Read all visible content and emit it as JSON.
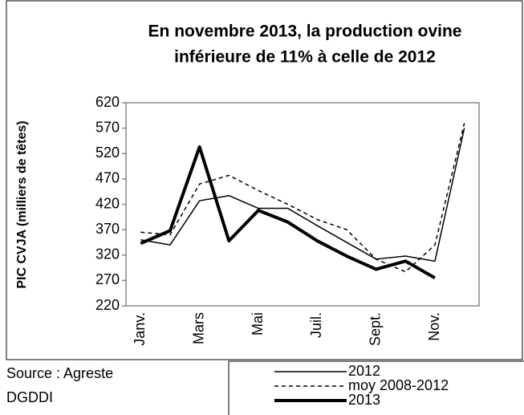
{
  "chart_data": {
    "type": "line",
    "title": [
      "En novembre 2013,  la production ovine",
      "inférieure de 11% à celle de 2012"
    ],
    "y_label": "PIC CVJA (milliers de têtes)",
    "source": [
      "Source : Agreste",
      "DGDDI"
    ],
    "categories": [
      "Janv.",
      null,
      "Mars",
      null,
      "Mai",
      null,
      "Juil.",
      null,
      "Sept.",
      null,
      "Nov.",
      null
    ],
    "series": [
      {
        "name": "2012",
        "color": "#000000",
        "line_width": 1.5,
        "dash": "none",
        "values": [
          350,
          340,
          427,
          437,
          412,
          412,
          378,
          345,
          312,
          318,
          308,
          570
        ]
      },
      {
        "name": "moy 2008-2012",
        "color": "#000000",
        "line_width": 1.5,
        "dash": "5 4",
        "values": [
          365,
          360,
          460,
          477,
          447,
          420,
          390,
          370,
          312,
          287,
          340,
          580
        ]
      },
      {
        "name": "2013",
        "color": "#000000",
        "line_width": 4,
        "dash": "none",
        "values": [
          343,
          368,
          533,
          348,
          408,
          385,
          348,
          318,
          292,
          308,
          275,
          null
        ]
      }
    ],
    "ylim": [
      220,
      620
    ],
    "yticks": [
      220,
      270,
      320,
      370,
      420,
      470,
      520,
      570,
      620
    ],
    "grid": false,
    "legend": "bottom-right"
  }
}
